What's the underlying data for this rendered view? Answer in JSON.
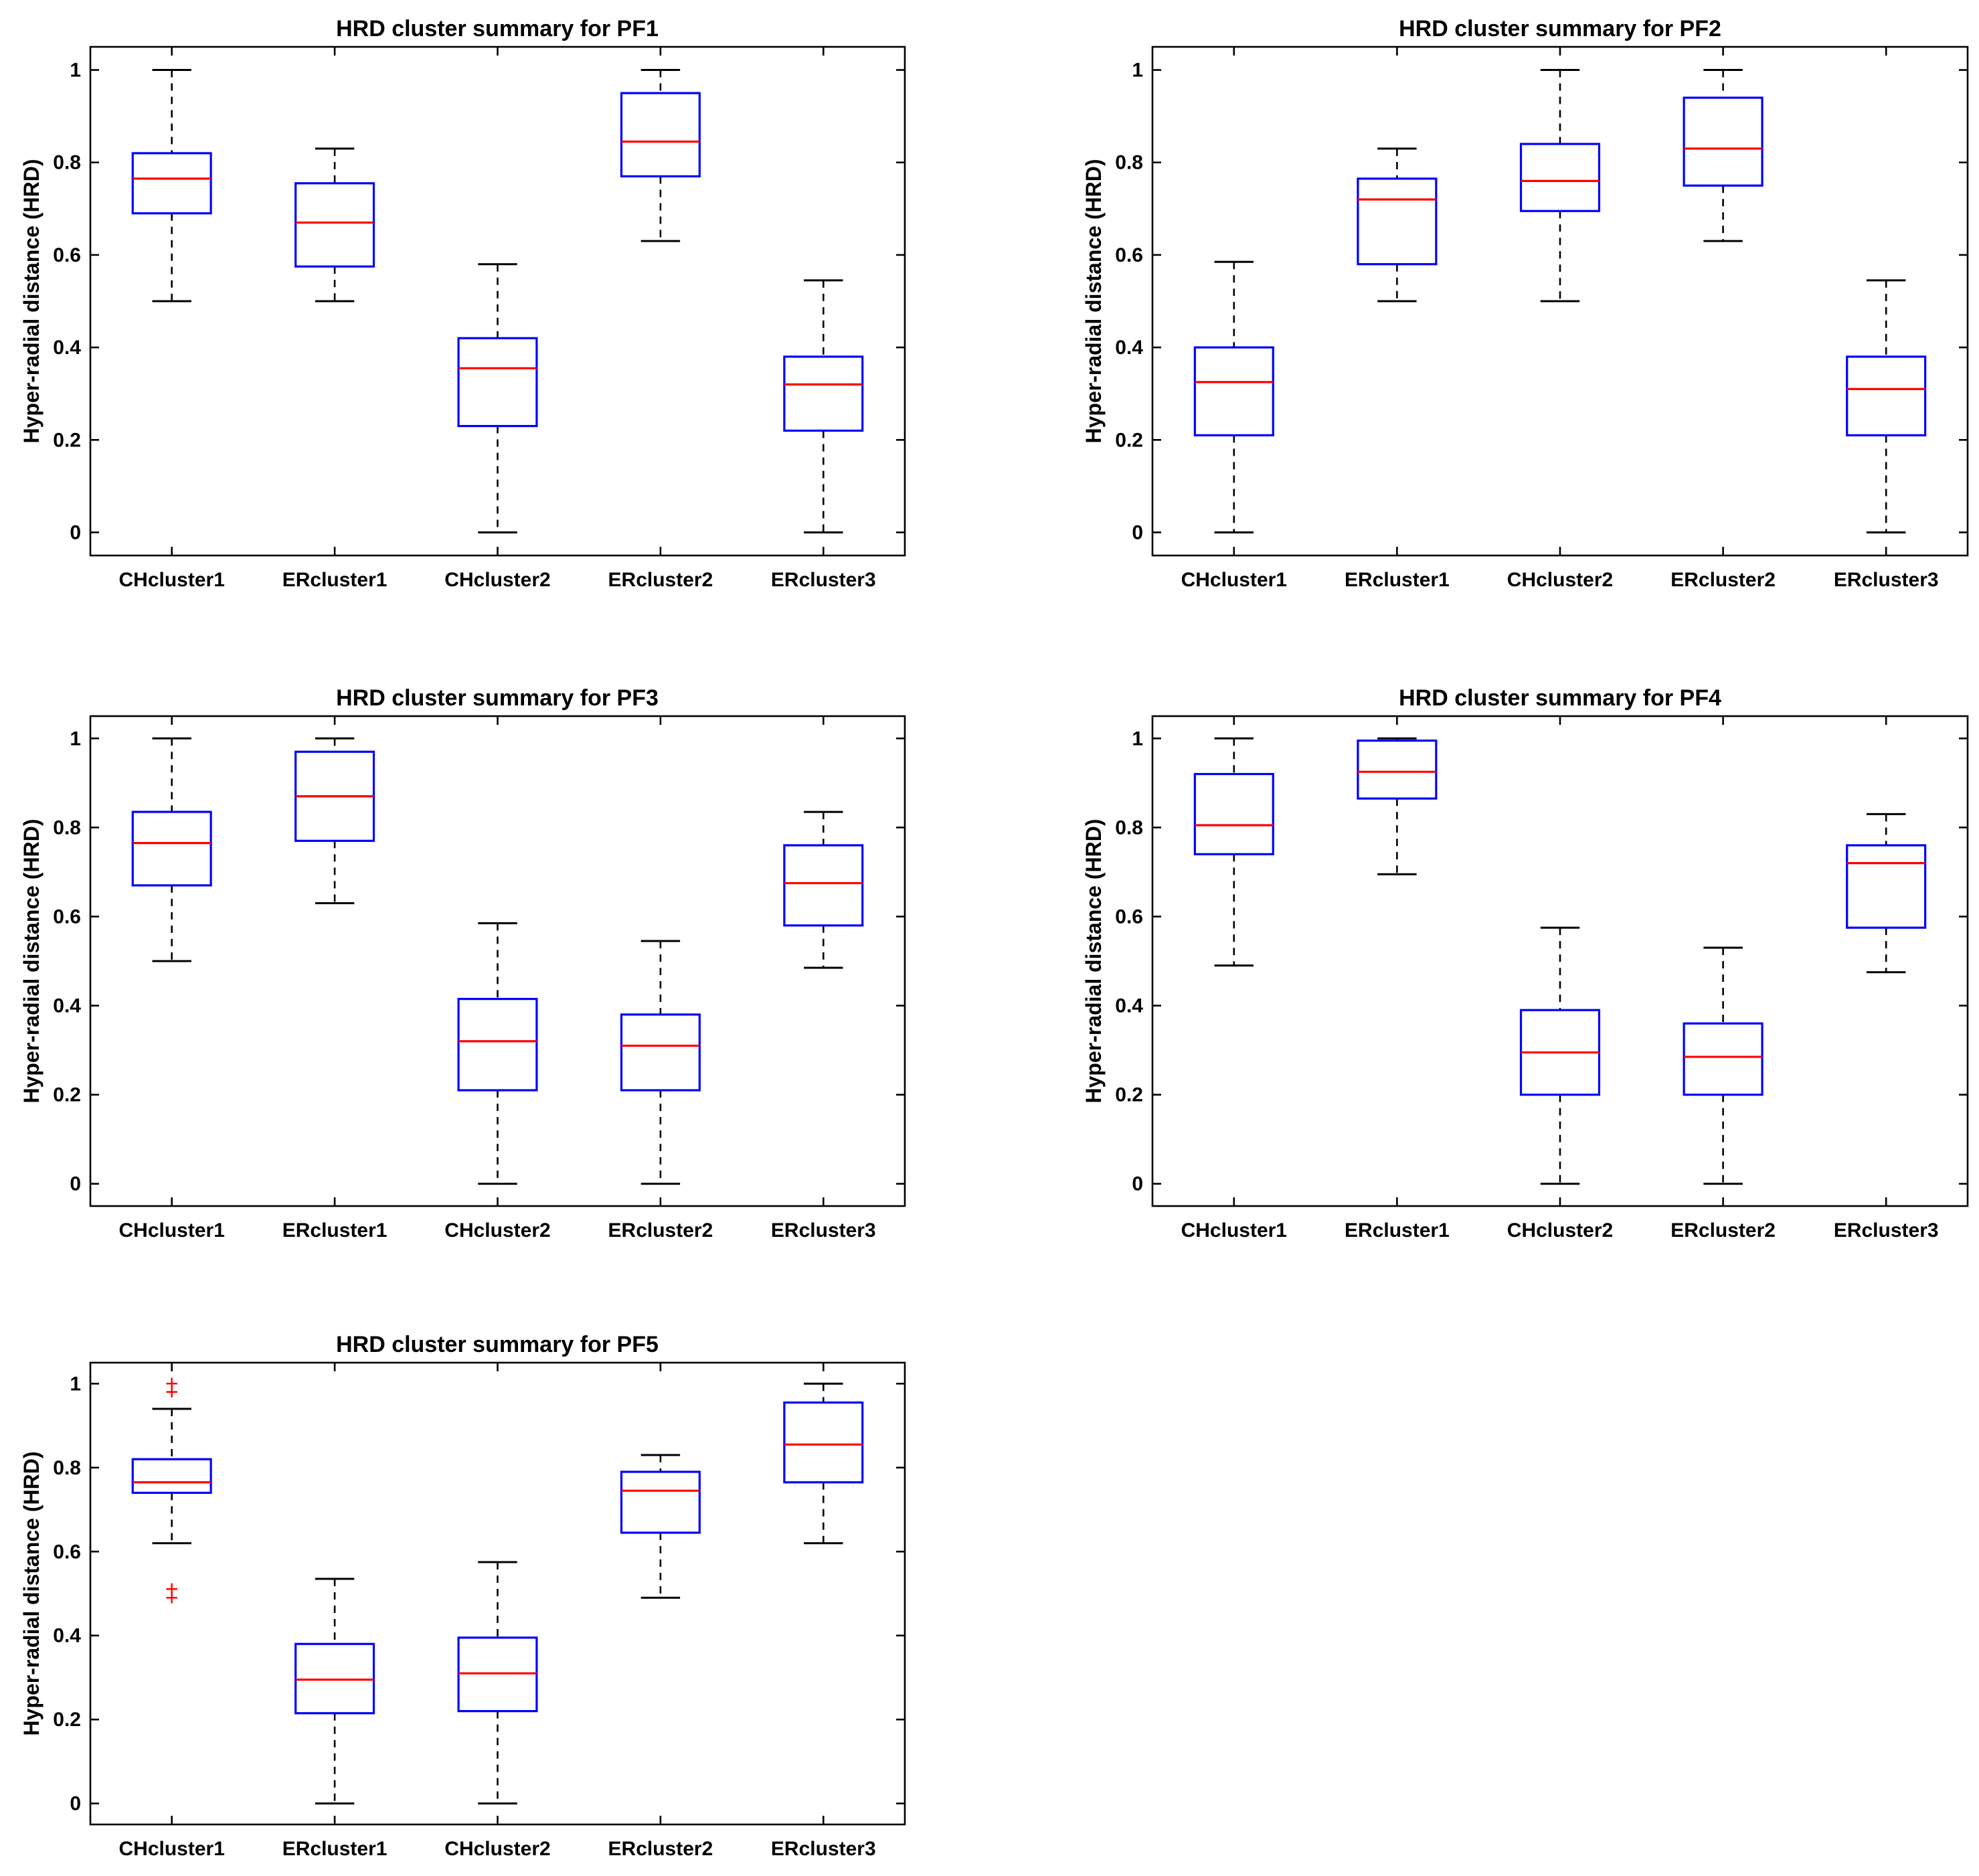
{
  "y_axis_label": "Hyper-radial distance (HRD)",
  "chart_data": [
    {
      "type": "boxplot",
      "title": "HRD cluster summary for PF1",
      "ylabel": "Hyper-radial distance (HRD)",
      "ylim": [
        -0.05,
        1.05
      ],
      "yticks": [
        0,
        0.2,
        0.4,
        0.6,
        0.8,
        1
      ],
      "ytick_labels": [
        "0",
        "0.2",
        "0.4",
        "0.6",
        "0.8",
        "1"
      ],
      "categories": [
        "CHcluster1",
        "ERcluster1",
        "CHcluster2",
        "ERcluster2",
        "ERcluster3"
      ],
      "boxes": [
        {
          "min": 0.5,
          "q1": 0.69,
          "median": 0.765,
          "q3": 0.82,
          "max": 1.0,
          "outliers": []
        },
        {
          "min": 0.5,
          "q1": 0.575,
          "median": 0.67,
          "q3": 0.755,
          "max": 0.83,
          "outliers": []
        },
        {
          "min": 0.0,
          "q1": 0.23,
          "median": 0.355,
          "q3": 0.42,
          "max": 0.58,
          "outliers": []
        },
        {
          "min": 0.63,
          "q1": 0.77,
          "median": 0.845,
          "q3": 0.95,
          "max": 1.0,
          "outliers": []
        },
        {
          "min": 0.0,
          "q1": 0.22,
          "median": 0.32,
          "q3": 0.38,
          "max": 0.545,
          "outliers": []
        }
      ]
    },
    {
      "type": "boxplot",
      "title": "HRD cluster summary for PF2",
      "ylabel": "Hyper-radial distance (HRD)",
      "ylim": [
        -0.05,
        1.05
      ],
      "yticks": [
        0,
        0.2,
        0.4,
        0.6,
        0.8,
        1
      ],
      "ytick_labels": [
        "0",
        "0.2",
        "0.4",
        "0.6",
        "0.8",
        "1"
      ],
      "categories": [
        "CHcluster1",
        "ERcluster1",
        "CHcluster2",
        "ERcluster2",
        "ERcluster3"
      ],
      "boxes": [
        {
          "min": 0.0,
          "q1": 0.21,
          "median": 0.325,
          "q3": 0.4,
          "max": 0.585,
          "outliers": []
        },
        {
          "min": 0.5,
          "q1": 0.58,
          "median": 0.72,
          "q3": 0.765,
          "max": 0.83,
          "outliers": []
        },
        {
          "min": 0.5,
          "q1": 0.695,
          "median": 0.76,
          "q3": 0.84,
          "max": 1.0,
          "outliers": []
        },
        {
          "min": 0.63,
          "q1": 0.75,
          "median": 0.83,
          "q3": 0.94,
          "max": 1.0,
          "outliers": []
        },
        {
          "min": 0.0,
          "q1": 0.21,
          "median": 0.31,
          "q3": 0.38,
          "max": 0.545,
          "outliers": []
        }
      ]
    },
    {
      "type": "boxplot",
      "title": "HRD cluster summary for PF3",
      "ylabel": "Hyper-radial distance (HRD)",
      "ylim": [
        -0.05,
        1.05
      ],
      "yticks": [
        0,
        0.2,
        0.4,
        0.6,
        0.8,
        1
      ],
      "ytick_labels": [
        "0",
        "0.2",
        "0.4",
        "0.6",
        "0.8",
        "1"
      ],
      "categories": [
        "CHcluster1",
        "ERcluster1",
        "CHcluster2",
        "ERcluster2",
        "ERcluster3"
      ],
      "boxes": [
        {
          "min": 0.5,
          "q1": 0.67,
          "median": 0.765,
          "q3": 0.835,
          "max": 1.0,
          "outliers": []
        },
        {
          "min": 0.63,
          "q1": 0.77,
          "median": 0.87,
          "q3": 0.97,
          "max": 1.0,
          "outliers": []
        },
        {
          "min": 0.0,
          "q1": 0.21,
          "median": 0.32,
          "q3": 0.415,
          "max": 0.585,
          "outliers": []
        },
        {
          "min": 0.0,
          "q1": 0.21,
          "median": 0.31,
          "q3": 0.38,
          "max": 0.545,
          "outliers": []
        },
        {
          "min": 0.485,
          "q1": 0.58,
          "median": 0.675,
          "q3": 0.76,
          "max": 0.835,
          "outliers": []
        }
      ]
    },
    {
      "type": "boxplot",
      "title": "HRD cluster summary for PF4",
      "ylabel": "Hyper-radial distance (HRD)",
      "ylim": [
        -0.05,
        1.05
      ],
      "yticks": [
        0,
        0.2,
        0.4,
        0.6,
        0.8,
        1
      ],
      "ytick_labels": [
        "0",
        "0.2",
        "0.4",
        "0.6",
        "0.8",
        "1"
      ],
      "categories": [
        "CHcluster1",
        "ERcluster1",
        "CHcluster2",
        "ERcluster2",
        "ERcluster3"
      ],
      "boxes": [
        {
          "min": 0.49,
          "q1": 0.74,
          "median": 0.805,
          "q3": 0.92,
          "max": 1.0,
          "outliers": []
        },
        {
          "min": 0.695,
          "q1": 0.865,
          "median": 0.925,
          "q3": 0.995,
          "max": 1.0,
          "outliers": []
        },
        {
          "min": 0.0,
          "q1": 0.2,
          "median": 0.295,
          "q3": 0.39,
          "max": 0.575,
          "outliers": []
        },
        {
          "min": 0.0,
          "q1": 0.2,
          "median": 0.285,
          "q3": 0.36,
          "max": 0.53,
          "outliers": []
        },
        {
          "min": 0.475,
          "q1": 0.575,
          "median": 0.72,
          "q3": 0.76,
          "max": 0.83,
          "outliers": []
        }
      ]
    },
    {
      "type": "boxplot",
      "title": "HRD cluster summary for PF5",
      "ylabel": "Hyper-radial distance (HRD)",
      "ylim": [
        -0.05,
        1.05
      ],
      "yticks": [
        0,
        0.2,
        0.4,
        0.6,
        0.8,
        1
      ],
      "ytick_labels": [
        "0",
        "0.2",
        "0.4",
        "0.6",
        "0.8",
        "1"
      ],
      "categories": [
        "CHcluster1",
        "ERcluster1",
        "CHcluster2",
        "ERcluster2",
        "ERcluster3"
      ],
      "boxes": [
        {
          "min": 0.62,
          "q1": 0.74,
          "median": 0.765,
          "q3": 0.82,
          "max": 0.94,
          "outliers": [
            1.0,
            0.98,
            0.51,
            0.49
          ]
        },
        {
          "min": 0.0,
          "q1": 0.215,
          "median": 0.295,
          "q3": 0.38,
          "max": 0.535,
          "outliers": []
        },
        {
          "min": 0.0,
          "q1": 0.22,
          "median": 0.31,
          "q3": 0.395,
          "max": 0.575,
          "outliers": []
        },
        {
          "min": 0.49,
          "q1": 0.645,
          "median": 0.745,
          "q3": 0.79,
          "max": 0.83,
          "outliers": []
        },
        {
          "min": 0.62,
          "q1": 0.765,
          "median": 0.855,
          "q3": 0.955,
          "max": 1.0,
          "outliers": []
        }
      ]
    }
  ]
}
